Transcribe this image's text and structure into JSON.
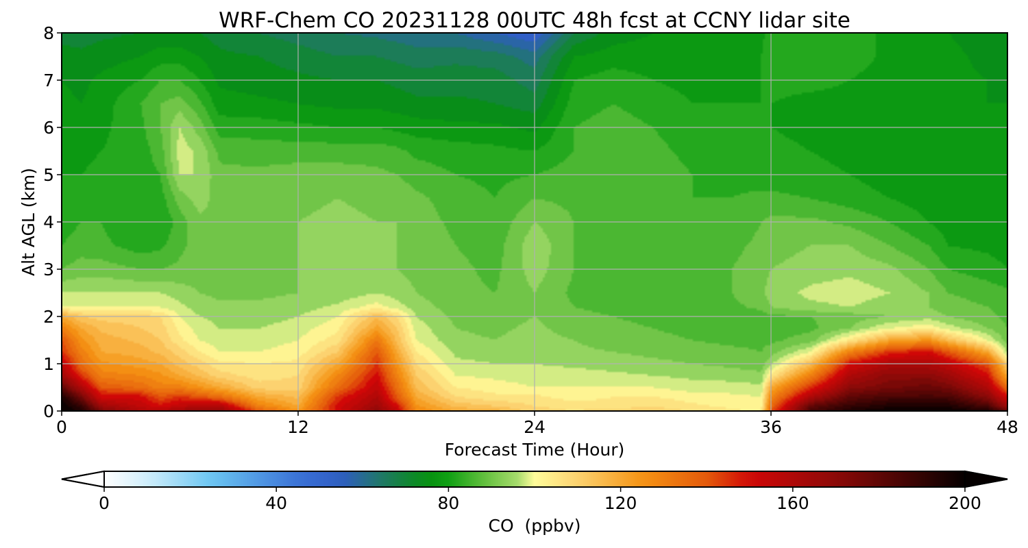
{
  "chart_data": {
    "type": "heatmap",
    "title": "WRF-Chem CO  20231128 00UTC 48h fcst at CCNY lidar site",
    "xlabel": "Forecast Time (Hour)",
    "ylabel": "Alt AGL (km)",
    "xlim": [
      0,
      48
    ],
    "ylim": [
      0,
      8
    ],
    "xticks": [
      0,
      12,
      24,
      36,
      48
    ],
    "yticks": [
      0,
      1,
      2,
      3,
      4,
      5,
      6,
      7,
      8
    ],
    "grid": true,
    "z_label": "CO  (ppbv)",
    "z_range": [
      0,
      200
    ],
    "colorbar_ticks": [
      0,
      40,
      80,
      120,
      160,
      200
    ],
    "colorbar_extend": "both",
    "colorbar_position": "bottom",
    "colormap": [
      [
        0,
        "#ffffff"
      ],
      [
        10,
        "#cfeefb"
      ],
      [
        25,
        "#6ac5f2"
      ],
      [
        45,
        "#3b72d6"
      ],
      [
        55,
        "#2f5cc4"
      ],
      [
        65,
        "#1e7a60"
      ],
      [
        75,
        "#068f10"
      ],
      [
        80,
        "#10a014"
      ],
      [
        88,
        "#5fbe3c"
      ],
      [
        96,
        "#a6db6c"
      ],
      [
        100,
        "#fffc9b"
      ],
      [
        110,
        "#fcd270"
      ],
      [
        125,
        "#f59314"
      ],
      [
        140,
        "#e45a0b"
      ],
      [
        150,
        "#d00707"
      ],
      [
        170,
        "#8c0a08"
      ],
      [
        200,
        "#050000"
      ]
    ],
    "x": [
      0,
      1,
      2,
      4,
      5,
      6,
      7,
      8,
      10,
      12,
      14,
      16,
      17,
      18,
      20,
      22,
      24,
      26,
      28,
      30,
      32,
      34,
      35.5,
      36,
      38,
      40,
      42,
      44,
      45,
      47,
      48
    ],
    "y": [
      0,
      0.1,
      0.3,
      0.5,
      0.75,
      1.0,
      1.25,
      1.5,
      1.75,
      2.0,
      2.2,
      2.5,
      3.0,
      3.5,
      4.0,
      4.5,
      5.0,
      5.5,
      6.0,
      6.5,
      7.0,
      7.5,
      8.0
    ],
    "z": [
      [
        200,
        195,
        175,
        160,
        160,
        165,
        170,
        170,
        140,
        125,
        150,
        170,
        155,
        128,
        120,
        118,
        110,
        108,
        110,
        110,
        108,
        105,
        103,
        140,
        185,
        195,
        200,
        200,
        200,
        195,
        180
      ],
      [
        200,
        190,
        165,
        155,
        150,
        155,
        160,
        160,
        130,
        120,
        150,
        165,
        150,
        125,
        115,
        112,
        108,
        106,
        106,
        108,
        105,
        103,
        102,
        135,
        180,
        190,
        195,
        195,
        195,
        185,
        165
      ],
      [
        195,
        175,
        150,
        150,
        140,
        145,
        140,
        135,
        120,
        115,
        145,
        160,
        140,
        120,
        108,
        105,
        105,
        102,
        104,
        104,
        102,
        101,
        100,
        128,
        160,
        180,
        185,
        185,
        185,
        170,
        150
      ],
      [
        180,
        160,
        140,
        135,
        130,
        130,
        125,
        120,
        110,
        110,
        135,
        155,
        135,
        115,
        104,
        102,
        100,
        100,
        100,
        100,
        98,
        98,
        97,
        120,
        145,
        170,
        175,
        178,
        175,
        160,
        135
      ],
      [
        165,
        145,
        130,
        128,
        125,
        120,
        115,
        110,
        106,
        108,
        128,
        150,
        130,
        112,
        100,
        99,
        98,
        98,
        97,
        96,
        95,
        94,
        93,
        105,
        130,
        160,
        170,
        170,
        165,
        150,
        120
      ],
      [
        155,
        135,
        125,
        122,
        120,
        114,
        110,
        105,
        104,
        105,
        120,
        145,
        125,
        108,
        97,
        96,
        96,
        95,
        94,
        93,
        92,
        91,
        90,
        95,
        115,
        150,
        160,
        160,
        155,
        140,
        110
      ],
      [
        145,
        130,
        120,
        118,
        115,
        110,
        104,
        100,
        100,
        102,
        112,
        140,
        120,
        104,
        95,
        94,
        95,
        93,
        92,
        91,
        90,
        89,
        88,
        90,
        100,
        130,
        145,
        150,
        140,
        120,
        95
      ],
      [
        140,
        125,
        118,
        115,
        112,
        105,
        100,
        98,
        98,
        100,
        106,
        132,
        115,
        100,
        93,
        92,
        94,
        92,
        90,
        89,
        88,
        87,
        87,
        87,
        90,
        105,
        120,
        125,
        115,
        100,
        90
      ],
      [
        130,
        120,
        115,
        112,
        110,
        103,
        98,
        96,
        96,
        98,
        103,
        122,
        112,
        98,
        92,
        91,
        93,
        90,
        89,
        88,
        87,
        86,
        86,
        86,
        87,
        92,
        100,
        103,
        98,
        92,
        88
      ],
      [
        120,
        112,
        110,
        110,
        108,
        100,
        96,
        95,
        94,
        96,
        100,
        115,
        108,
        96,
        91,
        90,
        92,
        89,
        88,
        87,
        86,
        86,
        86,
        87,
        88,
        90,
        92,
        94,
        92,
        89,
        87
      ],
      [
        100,
        100,
        100,
        100,
        100,
        97,
        94,
        93,
        93,
        94,
        97,
        102,
        98,
        94,
        90,
        89,
        92,
        88,
        87,
        86,
        86,
        87,
        89,
        92,
        95,
        96,
        94,
        92,
        90,
        88,
        86
      ],
      [
        96,
        96,
        96,
        96,
        96,
        94,
        92,
        91,
        91,
        92,
        93,
        96,
        94,
        92,
        89,
        88,
        92,
        87,
        86,
        86,
        86,
        88,
        91,
        94,
        97,
        98,
        96,
        92,
        88,
        86,
        85
      ],
      [
        88,
        90,
        90,
        88,
        88,
        89,
        90,
        90,
        91,
        92,
        92,
        92,
        92,
        91,
        89,
        87,
        94,
        88,
        86,
        85,
        86,
        88,
        90,
        92,
        94,
        95,
        93,
        88,
        84,
        82,
        80
      ],
      [
        84,
        86,
        85,
        82,
        83,
        87,
        90,
        90,
        91,
        92,
        93,
        92,
        92,
        91,
        88,
        86,
        95,
        88,
        86,
        84,
        85,
        87,
        89,
        90,
        92,
        92,
        88,
        84,
        80,
        79,
        78
      ],
      [
        82,
        84,
        84,
        80,
        80,
        86,
        91,
        91,
        92,
        92,
        93,
        92,
        92,
        90,
        87,
        85,
        92,
        88,
        86,
        84,
        84,
        85,
        88,
        89,
        89,
        87,
        84,
        80,
        78,
        78,
        77
      ],
      [
        81,
        82,
        84,
        82,
        82,
        90,
        94,
        90,
        90,
        91,
        92,
        91,
        91,
        89,
        86,
        84,
        88,
        87,
        87,
        85,
        84,
        84,
        85,
        85,
        84,
        82,
        80,
        78,
        77,
        77,
        77
      ],
      [
        80,
        80,
        82,
        82,
        84,
        96,
        96,
        89,
        89,
        90,
        90,
        89,
        88,
        86,
        84,
        83,
        84,
        86,
        87,
        86,
        84,
        83,
        82,
        82,
        81,
        80,
        78,
        77,
        77,
        77,
        76
      ],
      [
        79,
        78,
        80,
        82,
        86,
        98,
        95,
        87,
        86,
        86,
        86,
        86,
        85,
        83,
        82,
        81,
        80,
        84,
        86,
        85,
        83,
        82,
        81,
        81,
        80,
        79,
        78,
        77,
        77,
        76,
        76
      ],
      [
        78,
        77,
        79,
        83,
        88,
        96,
        90,
        82,
        82,
        81,
        80,
        80,
        79,
        78,
        77,
        77,
        75,
        84,
        86,
        84,
        82,
        81,
        80,
        80,
        79,
        79,
        78,
        77,
        77,
        76,
        76
      ],
      [
        77,
        76,
        78,
        84,
        88,
        90,
        85,
        78,
        77,
        76,
        75,
        75,
        74,
        73,
        73,
        72,
        70,
        82,
        84,
        82,
        80,
        80,
        80,
        80,
        79,
        79,
        78,
        78,
        77,
        76,
        76
      ],
      [
        76,
        75,
        77,
        80,
        84,
        84,
        80,
        75,
        74,
        73,
        72,
        72,
        71,
        70,
        70,
        70,
        66,
        80,
        82,
        80,
        79,
        79,
        80,
        81,
        81,
        80,
        78,
        78,
        77,
        76,
        75
      ],
      [
        74,
        73,
        74,
        76,
        78,
        78,
        76,
        73,
        72,
        70,
        68,
        68,
        67,
        66,
        67,
        66,
        62,
        76,
        78,
        78,
        78,
        79,
        80,
        82,
        83,
        82,
        79,
        78,
        77,
        75,
        74
      ],
      [
        70,
        70,
        71,
        72,
        73,
        73,
        72,
        70,
        68,
        66,
        64,
        63,
        62,
        61,
        60,
        56,
        52,
        68,
        74,
        76,
        77,
        78,
        79,
        82,
        84,
        82,
        79,
        78,
        76,
        74,
        72
      ]
    ]
  }
}
